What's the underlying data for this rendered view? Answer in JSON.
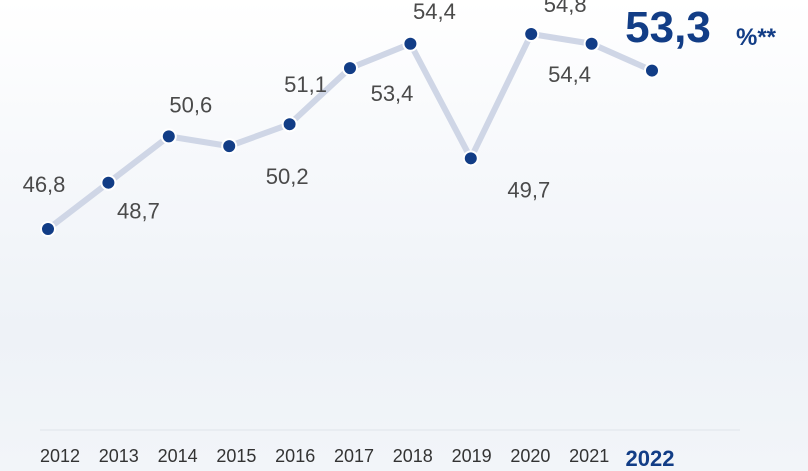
{
  "chart_data": {
    "type": "line",
    "x": [
      "2012",
      "2013",
      "2014",
      "2015",
      "2016",
      "2017",
      "2018",
      "2019",
      "2020",
      "2021",
      "2022"
    ],
    "values": [
      46.8,
      48.7,
      50.6,
      50.2,
      51.1,
      53.4,
      54.4,
      49.7,
      54.8,
      54.4,
      53.3
    ],
    "value_labels": [
      "46,8",
      "48,7",
      "50,6",
      "50,2",
      "51,1",
      "53,4",
      "54,4",
      "49,7",
      "54,8",
      "54,4",
      "53,3"
    ],
    "highlight": {
      "year": "2022",
      "value": "53,3",
      "unit": "%**"
    },
    "grid": false,
    "colors": {
      "line": "#cfd6e6",
      "point": "#123d86",
      "point_outline": "#ffffff",
      "label": "#4a4a4a",
      "highlight": "#123d86",
      "baseline": "#dfe3ea"
    }
  }
}
